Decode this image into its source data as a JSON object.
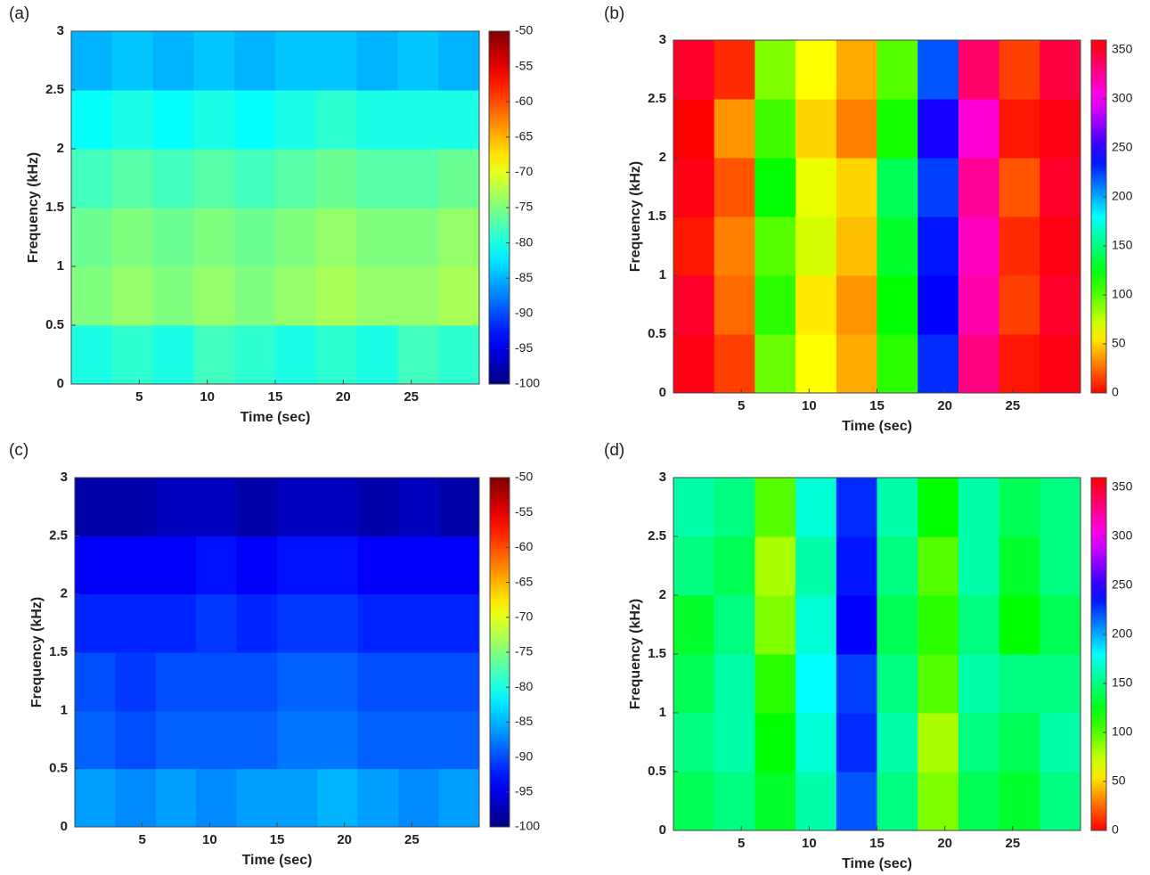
{
  "chart_data": [
    {
      "type": "heatmap",
      "label": "(a)",
      "xlabel": "Time (sec)",
      "ylabel": "Frequency (kHz)",
      "x": [
        1.5,
        4.5,
        7.5,
        10.5,
        13.5,
        16.5,
        19.5,
        22.5,
        25.5,
        28.5
      ],
      "y": [
        0.25,
        0.75,
        1.25,
        1.75,
        2.25,
        2.75
      ],
      "values": [
        [
          -80,
          -79,
          -80,
          -78,
          -79,
          -80,
          -79,
          -80,
          -78,
          -79
        ],
        [
          -75,
          -74,
          -75,
          -74,
          -75,
          -74,
          -73,
          -74,
          -74,
          -73
        ],
        [
          -76,
          -75,
          -76,
          -75,
          -76,
          -75,
          -74,
          -75,
          -75,
          -74
        ],
        [
          -78,
          -77,
          -78,
          -77,
          -78,
          -77,
          -76,
          -77,
          -77,
          -76
        ],
        [
          -81,
          -80,
          -81,
          -80,
          -81,
          -80,
          -79,
          -80,
          -80,
          -80
        ],
        [
          -85,
          -84,
          -85,
          -84,
          -85,
          -84,
          -84,
          -85,
          -84,
          -85
        ]
      ],
      "xlim": [
        0,
        30
      ],
      "xticks": [
        5,
        10,
        15,
        20,
        25
      ],
      "ylim": [
        0,
        3
      ],
      "yticks": [
        0,
        0.5,
        1,
        1.5,
        2,
        2.5,
        3
      ],
      "colormap": "jet",
      "clim": [
        -100,
        -50
      ],
      "cticks": [
        -100,
        -95,
        -90,
        -85,
        -80,
        -75,
        -70,
        -65,
        -60,
        -55,
        -50
      ]
    },
    {
      "type": "heatmap",
      "label": "(b)",
      "xlabel": "Time (sec)",
      "ylabel": "Frequency (kHz)",
      "x": [
        1.5,
        4.5,
        7.5,
        10.5,
        13.5,
        16.5,
        19.5,
        22.5,
        25.5,
        28.5
      ],
      "y": [
        0.25,
        0.75,
        1.25,
        1.75,
        2.25,
        2.75
      ],
      "values": [
        [
          355,
          15,
          95,
          60,
          40,
          110,
          230,
          330,
          5,
          355
        ],
        [
          350,
          25,
          110,
          55,
          35,
          120,
          240,
          320,
          15,
          350
        ],
        [
          5,
          30,
          100,
          70,
          45,
          130,
          235,
          315,
          10,
          355
        ],
        [
          355,
          20,
          120,
          65,
          50,
          140,
          225,
          325,
          20,
          350
        ],
        [
          0,
          35,
          105,
          50,
          30,
          115,
          245,
          310,
          5,
          355
        ],
        [
          350,
          10,
          90,
          60,
          40,
          100,
          220,
          335,
          15,
          345
        ]
      ],
      "xlim": [
        0,
        30
      ],
      "xticks": [
        5,
        10,
        15,
        20,
        25
      ],
      "ylim": [
        0,
        3
      ],
      "yticks": [
        0,
        0.5,
        1,
        1.5,
        2,
        2.5,
        3
      ],
      "colormap": "hsv",
      "clim": [
        0,
        360
      ],
      "cticks": [
        0,
        50,
        100,
        150,
        200,
        250,
        300,
        350
      ]
    },
    {
      "type": "heatmap",
      "label": "(c)",
      "xlabel": "Time (sec)",
      "ylabel": "Frequency (kHz)",
      "x": [
        1.5,
        4.5,
        7.5,
        10.5,
        13.5,
        16.5,
        19.5,
        22.5,
        25.5,
        28.5
      ],
      "y": [
        0.25,
        0.75,
        1.25,
        1.75,
        2.25,
        2.75
      ],
      "values": [
        [
          -86,
          -87,
          -86,
          -87,
          -86,
          -86,
          -85,
          -86,
          -87,
          -86
        ],
        [
          -89,
          -90,
          -89,
          -89,
          -89,
          -88,
          -88,
          -89,
          -89,
          -89
        ],
        [
          -90,
          -91,
          -90,
          -90,
          -90,
          -89,
          -89,
          -90,
          -90,
          -90
        ],
        [
          -92,
          -92,
          -92,
          -91,
          -92,
          -91,
          -91,
          -92,
          -92,
          -92
        ],
        [
          -94,
          -94,
          -94,
          -93,
          -94,
          -93,
          -93,
          -94,
          -94,
          -94
        ],
        [
          -98,
          -98,
          -97,
          -97,
          -98,
          -97,
          -97,
          -98,
          -97,
          -98
        ]
      ],
      "xlim": [
        0,
        30
      ],
      "xticks": [
        5,
        10,
        15,
        20,
        25
      ],
      "ylim": [
        0,
        3
      ],
      "yticks": [
        0,
        0.5,
        1,
        1.5,
        2,
        2.5,
        3
      ],
      "colormap": "jet",
      "clim": [
        -100,
        -50
      ],
      "cticks": [
        -100,
        -95,
        -90,
        -85,
        -80,
        -75,
        -70,
        -65,
        -60,
        -55,
        -50
      ]
    },
    {
      "type": "heatmap",
      "label": "(d)",
      "xlabel": "Time (sec)",
      "ylabel": "Frequency (kHz)",
      "x": [
        1.5,
        4.5,
        7.5,
        10.5,
        13.5,
        16.5,
        19.5,
        22.5,
        25.5,
        28.5
      ],
      "y": [
        0.25,
        0.75,
        1.25,
        1.75,
        2.25,
        2.75
      ],
      "values": [
        [
          140,
          150,
          130,
          160,
          220,
          150,
          90,
          140,
          130,
          150
        ],
        [
          150,
          160,
          120,
          170,
          230,
          160,
          80,
          150,
          140,
          160
        ],
        [
          140,
          160,
          110,
          180,
          225,
          150,
          100,
          160,
          150,
          150
        ],
        [
          130,
          150,
          90,
          170,
          240,
          140,
          110,
          150,
          120,
          140
        ],
        [
          150,
          140,
          80,
          160,
          235,
          150,
          100,
          160,
          130,
          150
        ],
        [
          160,
          150,
          100,
          170,
          230,
          160,
          120,
          160,
          140,
          150
        ]
      ],
      "xlim": [
        0,
        30
      ],
      "xticks": [
        5,
        10,
        15,
        20,
        25
      ],
      "ylim": [
        0,
        3
      ],
      "yticks": [
        0,
        0.5,
        1,
        1.5,
        2,
        2.5,
        3
      ],
      "colormap": "hsv",
      "clim": [
        0,
        360
      ],
      "cticks": [
        0,
        50,
        100,
        150,
        200,
        250,
        300,
        350
      ]
    }
  ]
}
